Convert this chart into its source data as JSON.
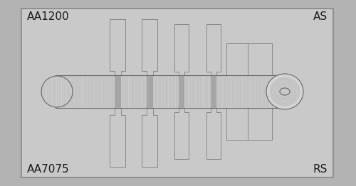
{
  "bg_outer": "#b3b3b3",
  "bg_inner": "#c9c9c9",
  "border_color": "#888888",
  "specimen_color": "#c9c9c9",
  "specimen_edge": "#888888",
  "rod_fill": "#cccccc",
  "rod_edge": "#666666",
  "line_color": "#888888",
  "dark_band": "#999999",
  "text_color": "#1a1a1a",
  "labels": [
    "AA1200",
    "AS",
    "AA7075",
    "RS"
  ],
  "font_size": 11,
  "fig_width": 5.0,
  "fig_height": 2.62,
  "dpi": 100
}
